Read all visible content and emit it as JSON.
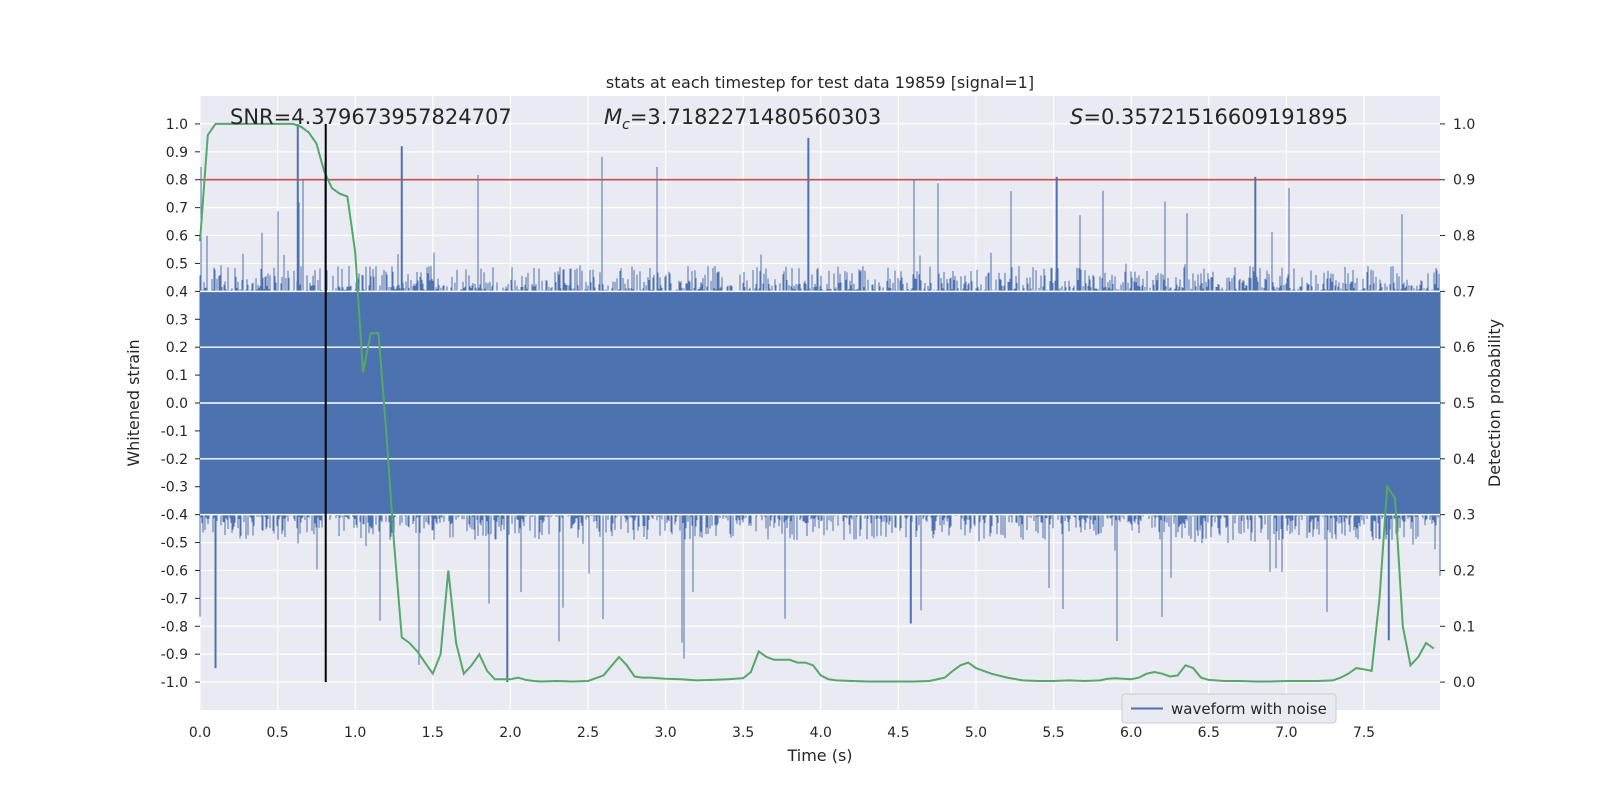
{
  "chart_data": {
    "type": "line",
    "title": "stats at each timestep for test data 19859 [signal=1]",
    "xlabel": "Time (s)",
    "ylabel": "Whitened strain",
    "y2label": "Detection probability",
    "xlim": [
      0.0,
      7.99
    ],
    "ylim": [
      -1.1,
      1.1
    ],
    "y2lim": [
      -0.05,
      1.05
    ],
    "xticks": [
      0.0,
      0.5,
      1.0,
      1.5,
      2.0,
      2.5,
      3.0,
      3.5,
      4.0,
      4.5,
      5.0,
      5.5,
      6.0,
      6.5,
      7.0,
      7.5
    ],
    "xtick_labels": [
      "0.0",
      "0.5",
      "1.0",
      "1.5",
      "2.0",
      "2.5",
      "3.0",
      "3.5",
      "4.0",
      "4.5",
      "5.0",
      "5.5",
      "6.0",
      "6.5",
      "7.0",
      "7.5"
    ],
    "yticks": [
      1.0,
      0.9,
      0.8,
      0.7,
      0.6,
      0.5,
      0.4,
      0.3,
      0.2,
      0.1,
      0.0,
      -0.1,
      -0.2,
      -0.3,
      -0.4,
      -0.5,
      -0.6,
      -0.7,
      -0.8,
      -0.9,
      -1.0
    ],
    "ytick_labels": [
      "1.0",
      "0.9",
      "0.8",
      "0.7",
      "0.6",
      "0.5",
      "0.4",
      "0.3",
      "0.2",
      "0.1",
      "0.0",
      "-0.1",
      "-0.2",
      "-0.3",
      "-0.4",
      "-0.5",
      "-0.6",
      "-0.7",
      "-0.8",
      "-0.9",
      "-1.0"
    ],
    "y2ticks": [
      1.0,
      0.9,
      0.8,
      0.7,
      0.6,
      0.5,
      0.4,
      0.3,
      0.2,
      0.1,
      0.0
    ],
    "y2tick_labels": [
      "1.0",
      "0.9",
      "0.8",
      "0.7",
      "0.6",
      "0.5",
      "0.4",
      "0.3",
      "0.2",
      "0.1",
      "0.0"
    ],
    "grid": true,
    "legend": {
      "position": "bottom-right",
      "entries": [
        "waveform with noise"
      ]
    },
    "annotations": {
      "snr": "SNR=4.379673957824707",
      "mc_symbol": "M",
      "mc_sub": "c",
      "mc_value": "=3.7182271480560303",
      "s_symbol": "S",
      "s_value": "=0.35721516609191895"
    },
    "threshold_line": {
      "y2": 0.9,
      "color": "#c44e52"
    },
    "marker_line": {
      "x": 0.81,
      "ymin": -1.0,
      "ymax": 1.0,
      "color": "#000000"
    },
    "waveform": {
      "name": "waveform with noise",
      "color": "#4c72b0",
      "x_start": 0.0,
      "x_end": 7.99,
      "core_amplitude": 0.4,
      "typical_extreme": 0.5,
      "peak_envelope": 0.95,
      "noise_seed": 19859,
      "notable_peaks": [
        {
          "x": 0.1,
          "y": -0.95
        },
        {
          "x": 0.63,
          "y": 1.0
        },
        {
          "x": 1.3,
          "y": 0.92
        },
        {
          "x": 1.98,
          "y": -1.0
        },
        {
          "x": 3.92,
          "y": 0.95
        },
        {
          "x": 4.58,
          "y": -0.79
        },
        {
          "x": 5.52,
          "y": 0.81
        },
        {
          "x": 6.8,
          "y": 0.81
        },
        {
          "x": 7.66,
          "y": -0.85
        }
      ]
    },
    "series": [
      {
        "name": "detection probability",
        "axis": "right",
        "color": "#55a868",
        "x": [
          0.0,
          0.05,
          0.1,
          0.2,
          0.3,
          0.4,
          0.5,
          0.6,
          0.65,
          0.7,
          0.75,
          0.8,
          0.85,
          0.9,
          0.95,
          1.0,
          1.05,
          1.1,
          1.15,
          1.2,
          1.25,
          1.3,
          1.35,
          1.4,
          1.45,
          1.5,
          1.55,
          1.6,
          1.65,
          1.7,
          1.75,
          1.8,
          1.85,
          1.9,
          1.95,
          2.0,
          2.05,
          2.1,
          2.15,
          2.2,
          2.3,
          2.4,
          2.5,
          2.6,
          2.7,
          2.75,
          2.8,
          2.85,
          2.9,
          3.0,
          3.1,
          3.2,
          3.3,
          3.4,
          3.5,
          3.55,
          3.6,
          3.65,
          3.7,
          3.75,
          3.8,
          3.85,
          3.9,
          3.95,
          4.0,
          4.05,
          4.1,
          4.2,
          4.3,
          4.4,
          4.5,
          4.6,
          4.7,
          4.8,
          4.85,
          4.9,
          4.95,
          5.0,
          5.05,
          5.1,
          5.2,
          5.3,
          5.4,
          5.5,
          5.6,
          5.7,
          5.8,
          5.85,
          5.9,
          6.0,
          6.05,
          6.1,
          6.15,
          6.2,
          6.25,
          6.3,
          6.35,
          6.4,
          6.45,
          6.5,
          6.6,
          6.7,
          6.8,
          6.9,
          7.0,
          7.1,
          7.2,
          7.3,
          7.35,
          7.4,
          7.45,
          7.5,
          7.55,
          7.6,
          7.65,
          7.7,
          7.75,
          7.8,
          7.85,
          7.9,
          7.95
        ],
        "values": [
          0.79,
          0.98,
          1.0,
          1.0,
          1.0,
          1.0,
          1.0,
          1.0,
          0.995,
          0.985,
          0.965,
          0.915,
          0.885,
          0.875,
          0.87,
          0.77,
          0.555,
          0.625,
          0.625,
          0.45,
          0.25,
          0.08,
          0.07,
          0.055,
          0.035,
          0.015,
          0.05,
          0.2,
          0.07,
          0.015,
          0.03,
          0.05,
          0.02,
          0.005,
          0.005,
          0.005,
          0.008,
          0.004,
          0.002,
          0.001,
          0.002,
          0.001,
          0.002,
          0.012,
          0.045,
          0.03,
          0.01,
          0.008,
          0.008,
          0.006,
          0.005,
          0.003,
          0.004,
          0.005,
          0.007,
          0.018,
          0.055,
          0.045,
          0.04,
          0.04,
          0.04,
          0.035,
          0.035,
          0.03,
          0.012,
          0.005,
          0.003,
          0.002,
          0.001,
          0.001,
          0.001,
          0.001,
          0.002,
          0.008,
          0.02,
          0.03,
          0.035,
          0.025,
          0.02,
          0.015,
          0.008,
          0.003,
          0.002,
          0.002,
          0.003,
          0.002,
          0.003,
          0.006,
          0.007,
          0.005,
          0.008,
          0.015,
          0.018,
          0.015,
          0.01,
          0.012,
          0.03,
          0.025,
          0.008,
          0.004,
          0.002,
          0.002,
          0.001,
          0.001,
          0.002,
          0.002,
          0.002,
          0.003,
          0.008,
          0.015,
          0.025,
          0.023,
          0.02,
          0.15,
          0.35,
          0.33,
          0.1,
          0.03,
          0.045,
          0.07,
          0.06
        ]
      }
    ]
  }
}
